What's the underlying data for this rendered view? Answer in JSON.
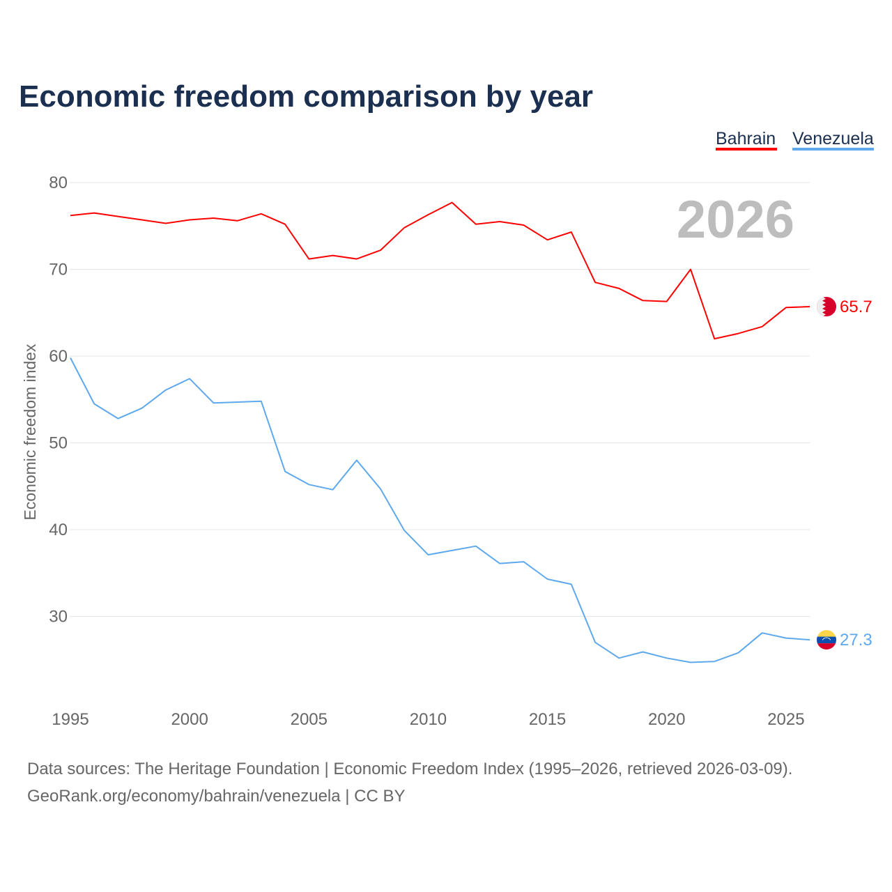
{
  "chart_data": {
    "type": "line",
    "title": "Economic freedom comparison by year",
    "ylabel": "Economic freedom index",
    "xlabel": "",
    "ylim": [
      17,
      84
    ],
    "xlim": [
      1995,
      2026
    ],
    "yticks": [
      30,
      40,
      50,
      60,
      70,
      80
    ],
    "xticks": [
      1995,
      2000,
      2005,
      2010,
      2015,
      2020,
      2025
    ],
    "grid": true,
    "legend_placement": "top-right",
    "year_watermark": "2026",
    "x": [
      1995,
      1996,
      1997,
      1998,
      1999,
      2000,
      2001,
      2002,
      2003,
      2004,
      2005,
      2006,
      2007,
      2008,
      2009,
      2010,
      2011,
      2012,
      2013,
      2014,
      2015,
      2016,
      2017,
      2018,
      2019,
      2020,
      2021,
      2022,
      2023,
      2024,
      2025,
      2026
    ],
    "series": [
      {
        "name": "Bahrain",
        "color": "#ff0000",
        "end_label": "65.7",
        "values": [
          76.2,
          76.5,
          76.1,
          75.7,
          75.3,
          75.7,
          75.9,
          75.6,
          76.4,
          75.2,
          71.2,
          71.6,
          71.2,
          72.2,
          74.8,
          76.3,
          77.7,
          75.2,
          75.5,
          75.1,
          73.4,
          74.3,
          68.5,
          67.8,
          66.4,
          66.3,
          70.0,
          62.0,
          62.6,
          63.4,
          65.6,
          65.7
        ]
      },
      {
        "name": "Venezuela",
        "color": "#5ea8ec",
        "end_label": "27.3",
        "values": [
          59.8,
          54.5,
          52.8,
          54.0,
          56.1,
          57.4,
          54.6,
          54.7,
          54.8,
          46.7,
          45.2,
          44.6,
          48.0,
          44.7,
          39.9,
          37.1,
          37.6,
          38.1,
          36.1,
          36.3,
          34.3,
          33.7,
          27.0,
          25.2,
          25.9,
          25.2,
          24.7,
          24.8,
          25.8,
          28.1,
          27.5,
          27.3
        ]
      }
    ]
  },
  "footer": {
    "line1": "Data sources: The Heritage Foundation | Economic Freedom Index (1995–2026, retrieved 2026-03-09).",
    "line2": "GeoRank.org/economy/bahrain/venezuela | CC BY"
  }
}
